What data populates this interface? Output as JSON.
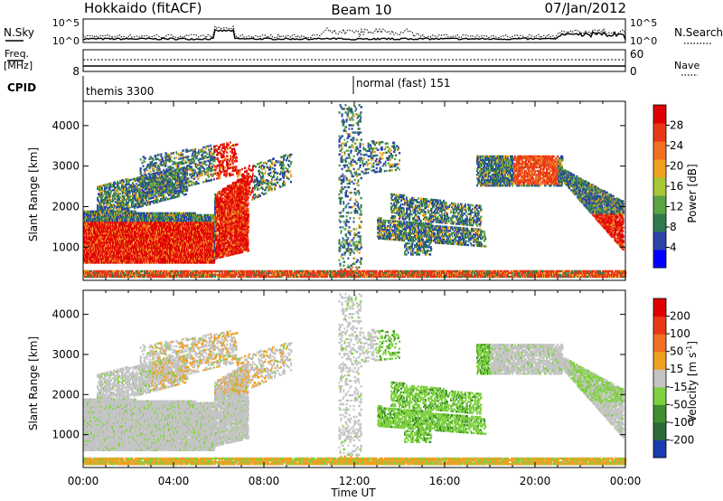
{
  "header": {
    "station": "Hokkaido (fitACF)",
    "beam": "Beam 10",
    "date": "07/Jan/2012"
  },
  "strips": {
    "nsky_label": "N.Sky",
    "nsky_ticks": [
      "10^5",
      "10^0"
    ],
    "nsearch_label": "N.Search",
    "nsearch_ticks": [
      "10^5",
      "10^0"
    ],
    "freq_label": "Freq.",
    "freq_unit": "[MHz]",
    "freq_tick": "8",
    "nave_label": "Nave",
    "nave_ticks": [
      "60",
      "0"
    ],
    "cpid_label": "CPID",
    "cpid_modes": [
      {
        "time": "00:00",
        "name": "themis 3300"
      },
      {
        "time": "12:00",
        "name": "normal (fast) 151"
      }
    ]
  },
  "chart_data": [
    {
      "type": "heatmap",
      "ylabel": "Slant Range [km]",
      "xlabel": "",
      "x_ticks": [
        "00:00",
        "04:00",
        "08:00",
        "12:00",
        "16:00",
        "20:00",
        "00:00"
      ],
      "y_ticks": [
        1000,
        2000,
        3000,
        4000
      ],
      "ylim": [
        180,
        4600
      ],
      "colorbar": {
        "label": "Power [dB]",
        "ticks": [
          28,
          24,
          20,
          16,
          12,
          8,
          4
        ],
        "colors": [
          "#0000ff",
          "#2a44a8",
          "#2f7a4e",
          "#5aa442",
          "#a6c838",
          "#f0a020",
          "#f07020",
          "#e83818",
          "#e00000"
        ]
      }
    },
    {
      "type": "heatmap",
      "ylabel": "Slant Range [km]",
      "xlabel": "Time UT",
      "x_ticks": [
        "00:00",
        "04:00",
        "08:00",
        "12:00",
        "16:00",
        "20:00",
        "00:00"
      ],
      "y_ticks": [
        1000,
        2000,
        3000,
        4000
      ],
      "ylim": [
        180,
        4600
      ],
      "colorbar": {
        "label": "Velocity [m s",
        "label_sup": "-1",
        "label_end": "]",
        "ticks": [
          200,
          100,
          50,
          15,
          -15,
          -50,
          -100,
          -200
        ],
        "colors": [
          "#1a3cb0",
          "#2c6a3a",
          "#3f8e30",
          "#7ed040",
          "#c4c4c4",
          "#f0a020",
          "#f07020",
          "#e83818",
          "#e00000"
        ]
      }
    }
  ]
}
